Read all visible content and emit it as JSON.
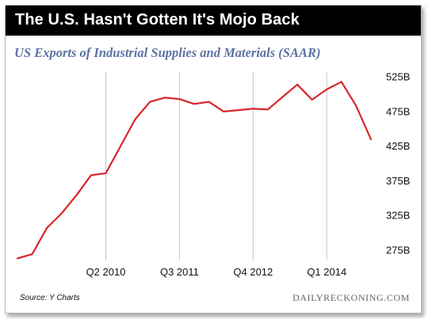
{
  "header": {
    "title": "The U.S. Hasn't Gotten It's Mojo Back"
  },
  "footer": {
    "source": "Source: Y Charts",
    "brand": "DAILYRECKONING.COM"
  },
  "colors": {
    "line": "#d8262b",
    "title_bg": "#000000",
    "subtitle": "#5b73a2",
    "grid": "#c8c8c8"
  },
  "chart_data": {
    "type": "line",
    "title": "US Exports of Industrial Supplies and Materials (SAAR)",
    "xlabel": "",
    "ylabel": "",
    "x_tick_labels": [
      "Q2 2010",
      "Q3 2011",
      "Q4 2012",
      "Q1 2014"
    ],
    "y_tick_labels": [
      "275B",
      "325B",
      "375B",
      "425B",
      "475B",
      "525B"
    ],
    "y_ticks": [
      275,
      325,
      375,
      425,
      475,
      525
    ],
    "ylim": [
      260,
      532
    ],
    "grid": "vertical",
    "series": [
      {
        "name": "",
        "x": [
          "Q4 2008",
          "Q1 2009",
          "Q2 2009",
          "Q3 2009",
          "Q4 2009",
          "Q1 2010",
          "Q2 2010",
          "Q3 2010",
          "Q4 2010",
          "Q1 2011",
          "Q2 2011",
          "Q3 2011",
          "Q4 2011",
          "Q1 2012",
          "Q2 2012",
          "Q3 2012",
          "Q4 2012",
          "Q1 2013",
          "Q2 2013",
          "Q3 2013",
          "Q4 2013",
          "Q1 2014",
          "Q2 2014",
          "Q3 2014",
          "Q4 2014"
        ],
        "values": [
          263,
          269,
          307,
          328,
          354,
          383,
          386,
          425,
          464,
          489,
          495,
          493,
          486,
          489,
          475,
          477,
          479,
          478,
          496,
          514,
          492,
          507,
          518,
          483,
          435
        ]
      }
    ]
  }
}
